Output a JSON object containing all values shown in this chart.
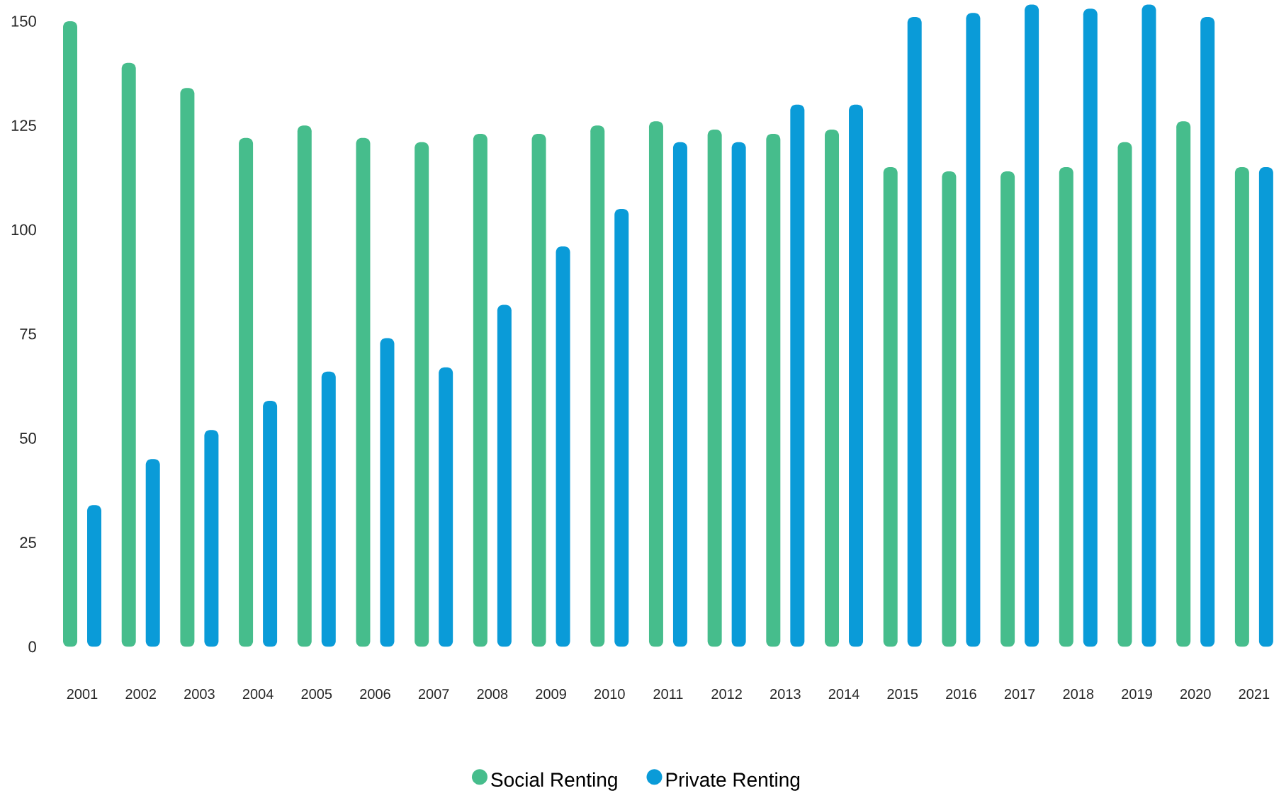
{
  "chart_data": {
    "type": "bar",
    "categories": [
      "2001",
      "2002",
      "2003",
      "2004",
      "2005",
      "2006",
      "2007",
      "2008",
      "2009",
      "2010",
      "2011",
      "2012",
      "2013",
      "2014",
      "2015",
      "2016",
      "2017",
      "2018",
      "2019",
      "2020",
      "2021"
    ],
    "series": [
      {
        "name": "Social Renting",
        "color": "#46bd8c",
        "values": [
          150,
          140,
          134,
          122,
          125,
          122,
          121,
          123,
          123,
          125,
          126,
          124,
          123,
          124,
          115,
          114,
          114,
          115,
          121,
          126,
          115
        ]
      },
      {
        "name": "Private Renting",
        "color": "#0a9bd8",
        "values": [
          34,
          45,
          52,
          59,
          66,
          74,
          67,
          82,
          96,
          105,
          121,
          121,
          130,
          130,
          151,
          152,
          154,
          153,
          154,
          151,
          115
        ]
      }
    ],
    "ylim": [
      0,
      155
    ],
    "yticks": [
      0,
      25,
      50,
      75,
      100,
      125,
      150
    ],
    "grid": false,
    "legend": "bottom"
  }
}
